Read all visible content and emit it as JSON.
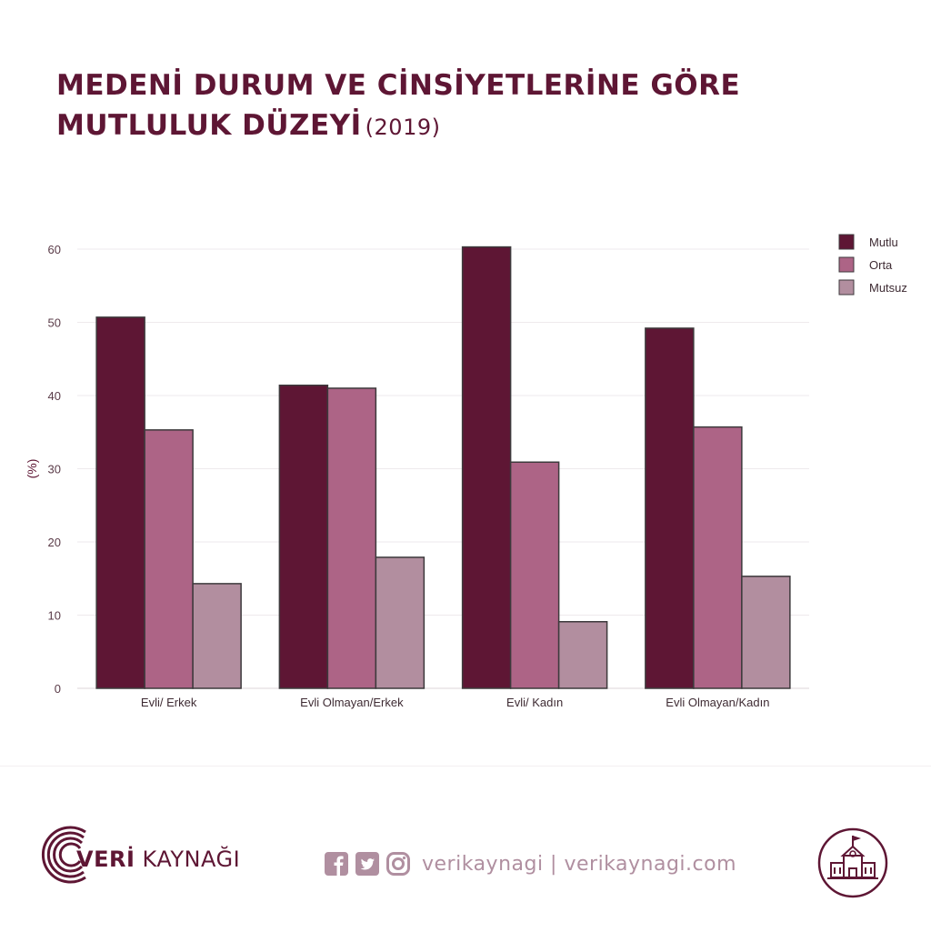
{
  "header": {
    "title_line1": "MEDENİ DURUM VE CİNSİYETLERİNE GÖRE",
    "title_line2": "MUTLULUK DÜZEYİ",
    "year": "(2019)"
  },
  "chart_data": {
    "type": "bar",
    "categories": [
      "Evli/ Erkek",
      "Evli Olmayan/Erkek",
      "Evli/ Kadın",
      "Evli Olmayan/Kadın"
    ],
    "series": [
      {
        "name": "Mutlu",
        "color": "#5e1634",
        "values": [
          50.7,
          41.4,
          60.3,
          49.2
        ]
      },
      {
        "name": "Orta",
        "color": "#ad6486",
        "values": [
          35.3,
          41.0,
          30.9,
          35.7
        ]
      },
      {
        "name": "Mutsuz",
        "color": "#b28e9f",
        "values": [
          14.3,
          17.9,
          9.1,
          15.3
        ]
      }
    ],
    "ylabel": "(%)",
    "yticks": [
      "0",
      "10",
      "20",
      "30",
      "40",
      "50",
      "60"
    ],
    "ylim": [
      0,
      60
    ],
    "grid": true,
    "legend": "top-right"
  },
  "footer": {
    "logo_bold": "VERİ",
    "logo_rest": " KAYNAĞI",
    "social_text": "verikaynagi | verikaynagi.com",
    "icons": [
      "facebook-icon",
      "twitter-icon",
      "instagram-icon",
      "school-building-icon"
    ]
  }
}
